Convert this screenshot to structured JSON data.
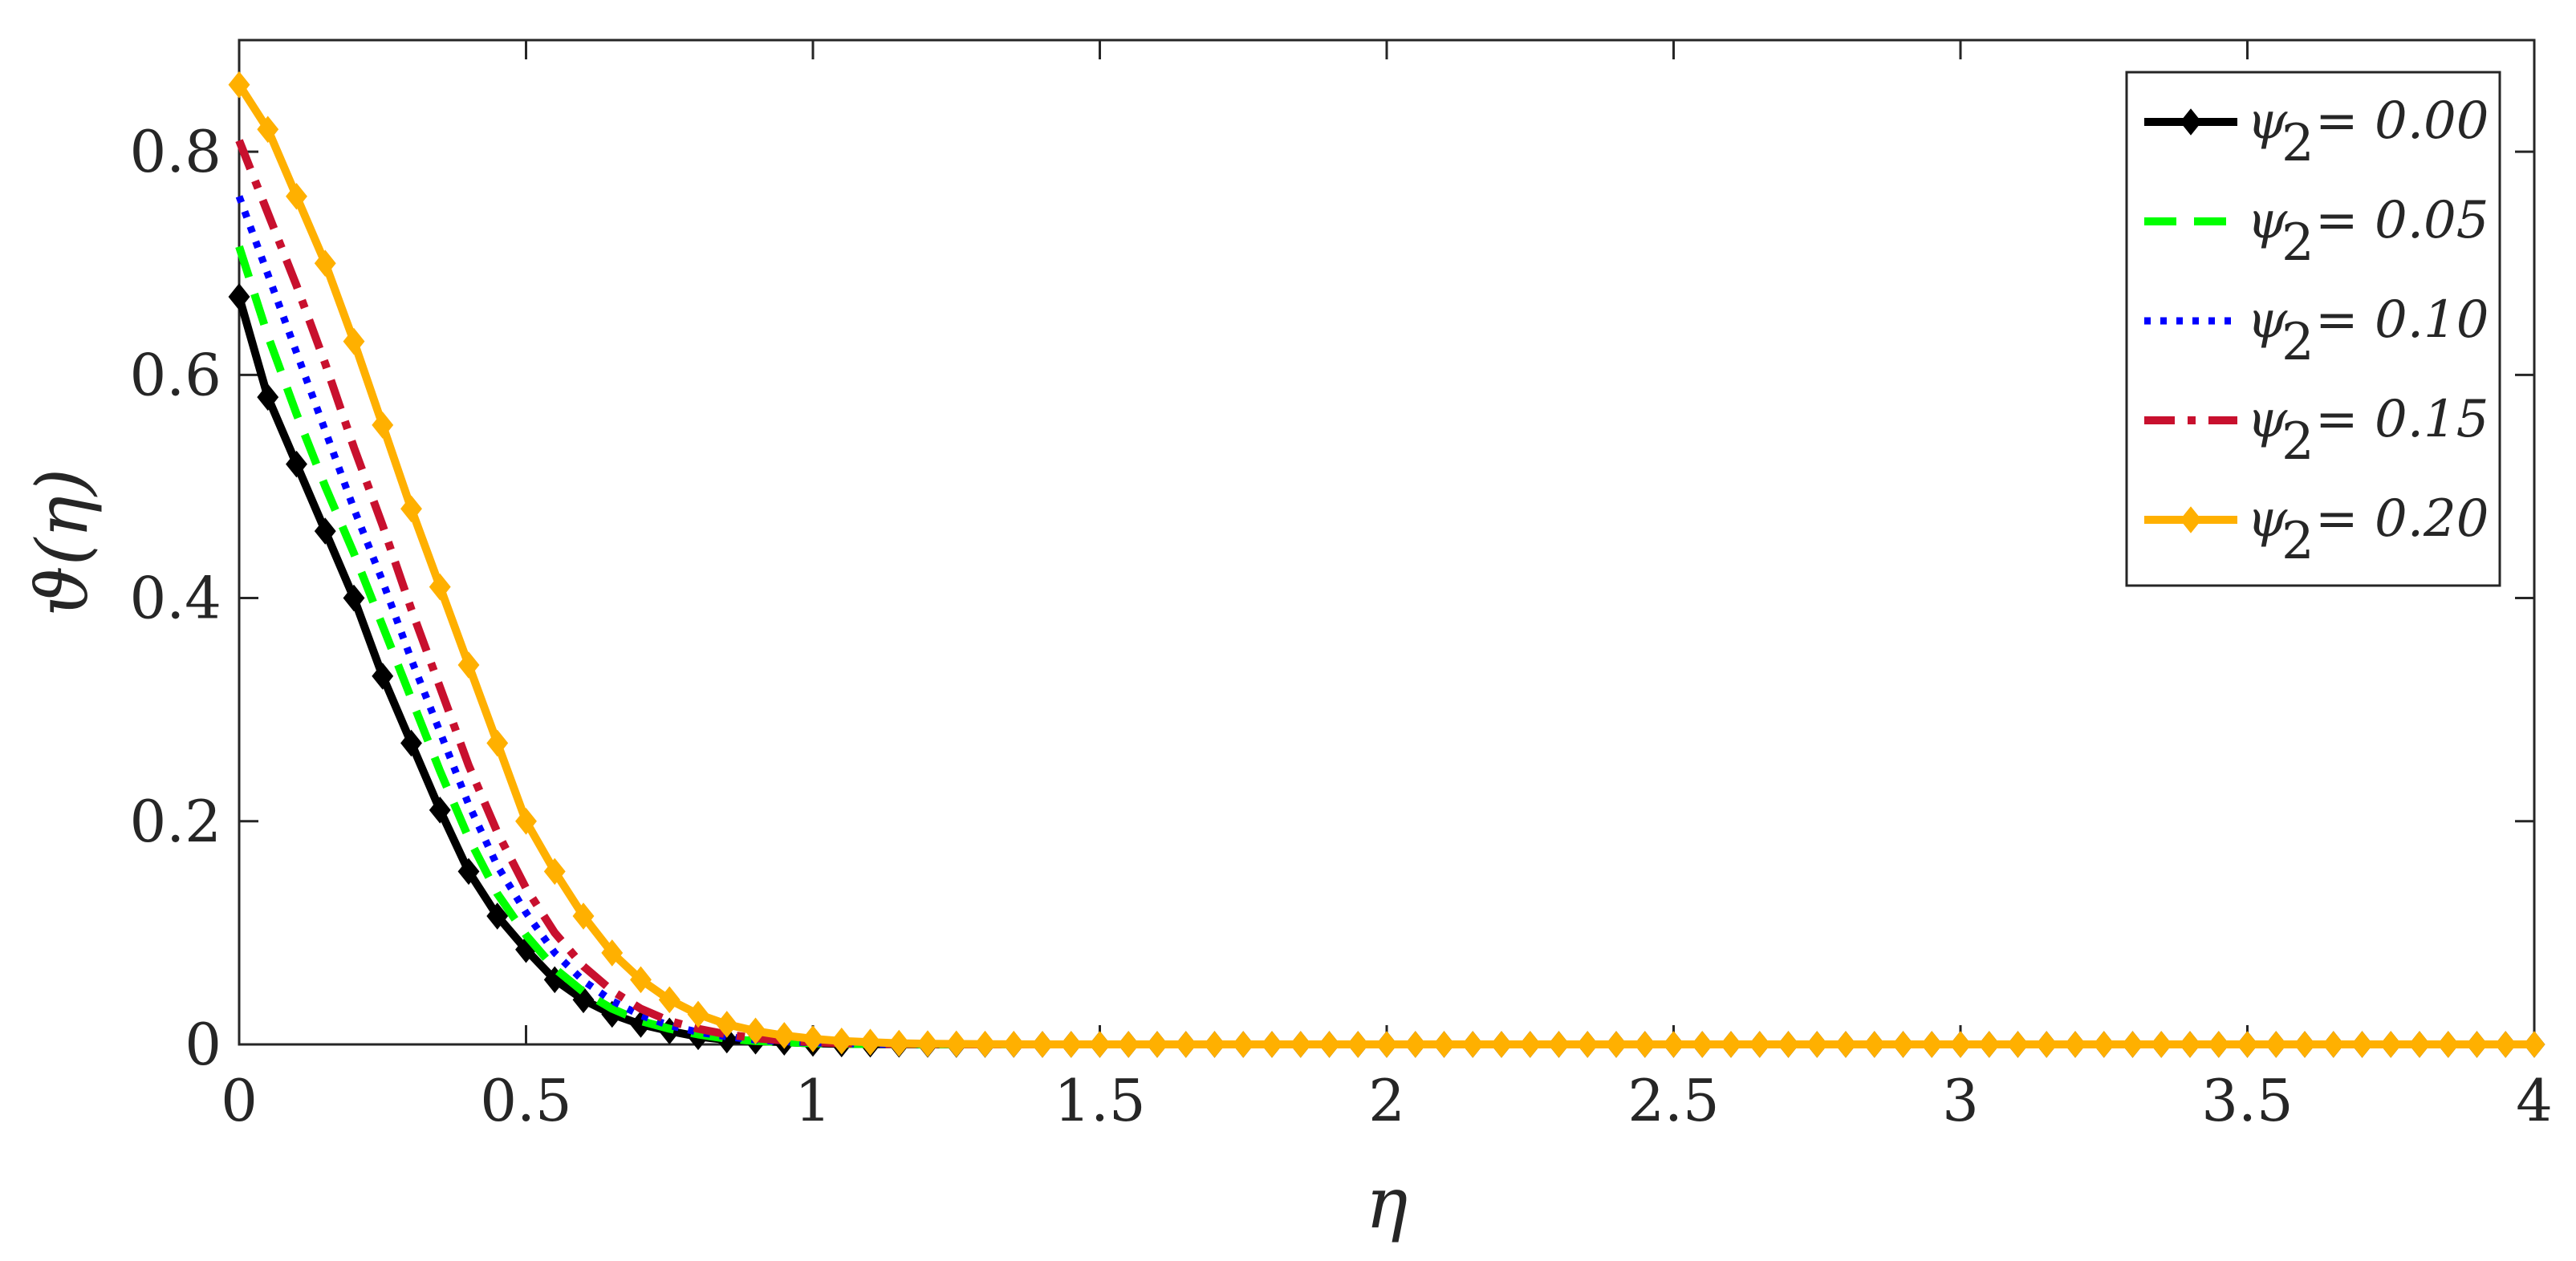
{
  "chart_data": {
    "type": "line",
    "title": "",
    "xlabel": "η",
    "ylabel": "ϑ(η)",
    "xlim": [
      0,
      4
    ],
    "ylim": [
      0,
      0.9
    ],
    "xticks": [
      0,
      0.5,
      1,
      1.5,
      2,
      2.5,
      3,
      3.5,
      4
    ],
    "xtick_labels": [
      "0",
      "0.5",
      "1",
      "1.5",
      "2",
      "2.5",
      "3",
      "3.5",
      "4"
    ],
    "yticks": [
      0,
      0.2,
      0.4,
      0.6,
      0.8
    ],
    "ytick_labels": [
      "0",
      "0.2",
      "0.4",
      "0.6",
      "0.8"
    ],
    "grid": false,
    "legend_position": "top-right",
    "x": [
      0,
      0.05,
      0.1,
      0.15,
      0.2,
      0.25,
      0.3,
      0.35,
      0.4,
      0.45,
      0.5,
      0.55,
      0.6,
      0.65,
      0.7,
      0.75,
      0.8,
      0.85,
      0.9,
      0.95,
      1.0,
      1.05,
      1.1,
      1.15,
      1.2,
      1.3,
      1.4,
      1.5,
      1.75,
      2,
      2.5,
      3,
      3.5,
      4
    ],
    "series": [
      {
        "name": "ψ₂ = 0.00",
        "label": "= 0.00",
        "color": "#000000",
        "style": "solid-diamond",
        "values": [
          0.67,
          0.58,
          0.52,
          0.46,
          0.4,
          0.33,
          0.27,
          0.21,
          0.155,
          0.115,
          0.085,
          0.058,
          0.04,
          0.027,
          0.018,
          0.012,
          0.007,
          0.004,
          0.003,
          0.002,
          0.001,
          0.0005,
          0.0003,
          0.0002,
          0.0001,
          0,
          0,
          0,
          0,
          0,
          0,
          0,
          0,
          0
        ]
      },
      {
        "name": "ψ₂ = 0.05",
        "label": "= 0.05",
        "color": "#00ff00",
        "style": "dashed",
        "values": [
          0.715,
          0.635,
          0.565,
          0.5,
          0.44,
          0.375,
          0.31,
          0.245,
          0.185,
          0.135,
          0.098,
          0.068,
          0.047,
          0.032,
          0.021,
          0.014,
          0.009,
          0.005,
          0.003,
          0.002,
          0.001,
          0.0006,
          0.0003,
          0.0002,
          0.0001,
          0,
          0,
          0,
          0,
          0,
          0,
          0,
          0,
          0
        ]
      },
      {
        "name": "ψ₂ = 0.10",
        "label": "= 0.10",
        "color": "#0000ff",
        "style": "dotted",
        "values": [
          0.76,
          0.69,
          0.62,
          0.55,
          0.48,
          0.415,
          0.345,
          0.28,
          0.215,
          0.16,
          0.118,
          0.082,
          0.057,
          0.039,
          0.026,
          0.017,
          0.011,
          0.007,
          0.004,
          0.0025,
          0.0015,
          0.0008,
          0.0004,
          0.0002,
          0.0001,
          0,
          0,
          0,
          0,
          0,
          0,
          0,
          0,
          0
        ]
      },
      {
        "name": "ψ₂ = 0.15",
        "label": "= 0.15",
        "color": "#c8102e",
        "style": "dashdot",
        "values": [
          0.81,
          0.745,
          0.68,
          0.61,
          0.535,
          0.465,
          0.39,
          0.32,
          0.25,
          0.19,
          0.14,
          0.1,
          0.07,
          0.048,
          0.032,
          0.021,
          0.014,
          0.009,
          0.0055,
          0.0035,
          0.002,
          0.001,
          0.0006,
          0.0003,
          0.0002,
          0,
          0,
          0,
          0,
          0,
          0,
          0,
          0,
          0
        ]
      },
      {
        "name": "ψ₂ = 0.20",
        "label": "= 0.20",
        "color": "#ffb000",
        "style": "solid-diamond",
        "values": [
          0.86,
          0.82,
          0.76,
          0.7,
          0.63,
          0.555,
          0.48,
          0.41,
          0.34,
          0.27,
          0.2,
          0.155,
          0.115,
          0.082,
          0.058,
          0.04,
          0.027,
          0.018,
          0.012,
          0.008,
          0.005,
          0.003,
          0.002,
          0.001,
          0.0006,
          0.0002,
          0,
          0,
          0,
          0,
          0,
          0,
          0,
          0
        ]
      }
    ]
  }
}
